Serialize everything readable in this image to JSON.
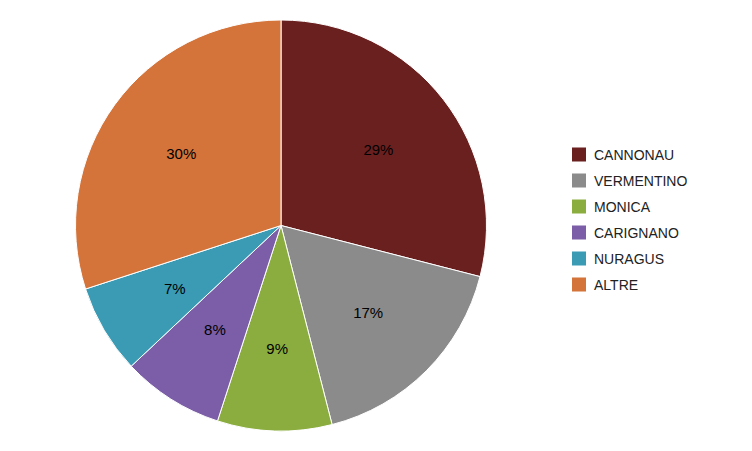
{
  "chart_data": {
    "type": "pie",
    "categories": [
      "CANNONAU",
      "VERMENTINO",
      "MONICA",
      "CARIGNANO",
      "NURAGUS",
      "ALTRE"
    ],
    "values": [
      29,
      17,
      9,
      8,
      7,
      30
    ],
    "value_labels": [
      "29%",
      "17%",
      "9%",
      "8%",
      "7%",
      "30%"
    ],
    "colors": [
      "#6B2020",
      "#8B8B8B",
      "#8BAD3F",
      "#7B5EA7",
      "#3B9BB5",
      "#D4743A"
    ],
    "data_labels": true,
    "legend": "right"
  }
}
